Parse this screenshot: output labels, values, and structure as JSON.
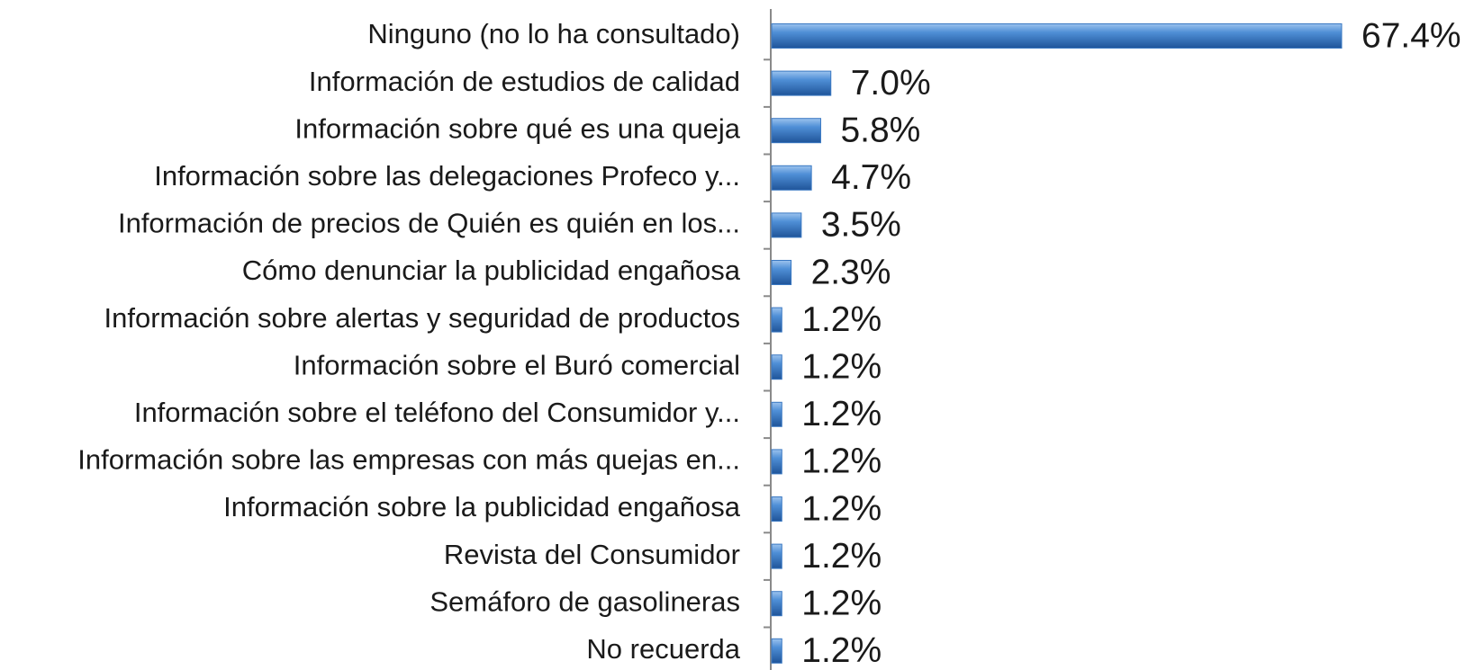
{
  "chart_data": {
    "type": "bar",
    "orientation": "horizontal",
    "categories": [
      "Ninguno (no lo ha consultado)",
      "Información de estudios de calidad",
      "Información sobre qué es una queja",
      "Información sobre las delegaciones Profeco y...",
      "Información de precios de Quién es quién en los...",
      "Cómo denunciar la publicidad engañosa",
      "Información sobre alertas y seguridad de productos",
      "Información sobre el Buró comercial",
      "Información sobre el teléfono del Consumidor y...",
      "Información sobre las empresas con más quejas en...",
      "Información sobre la publicidad engañosa",
      "Revista del Consumidor",
      "Semáforo de gasolineras",
      "No recuerda"
    ],
    "values": [
      67.4,
      7.0,
      5.8,
      4.7,
      3.5,
      2.3,
      1.2,
      1.2,
      1.2,
      1.2,
      1.2,
      1.2,
      1.2,
      1.2
    ],
    "value_labels": [
      "67.4%",
      "7.0%",
      "5.8%",
      "4.7%",
      "3.5%",
      "2.3%",
      "1.2%",
      "1.2%",
      "1.2%",
      "1.2%",
      "1.2%",
      "1.2%",
      "1.2%",
      "1.2%"
    ],
    "color": "#3a78c2"
  }
}
